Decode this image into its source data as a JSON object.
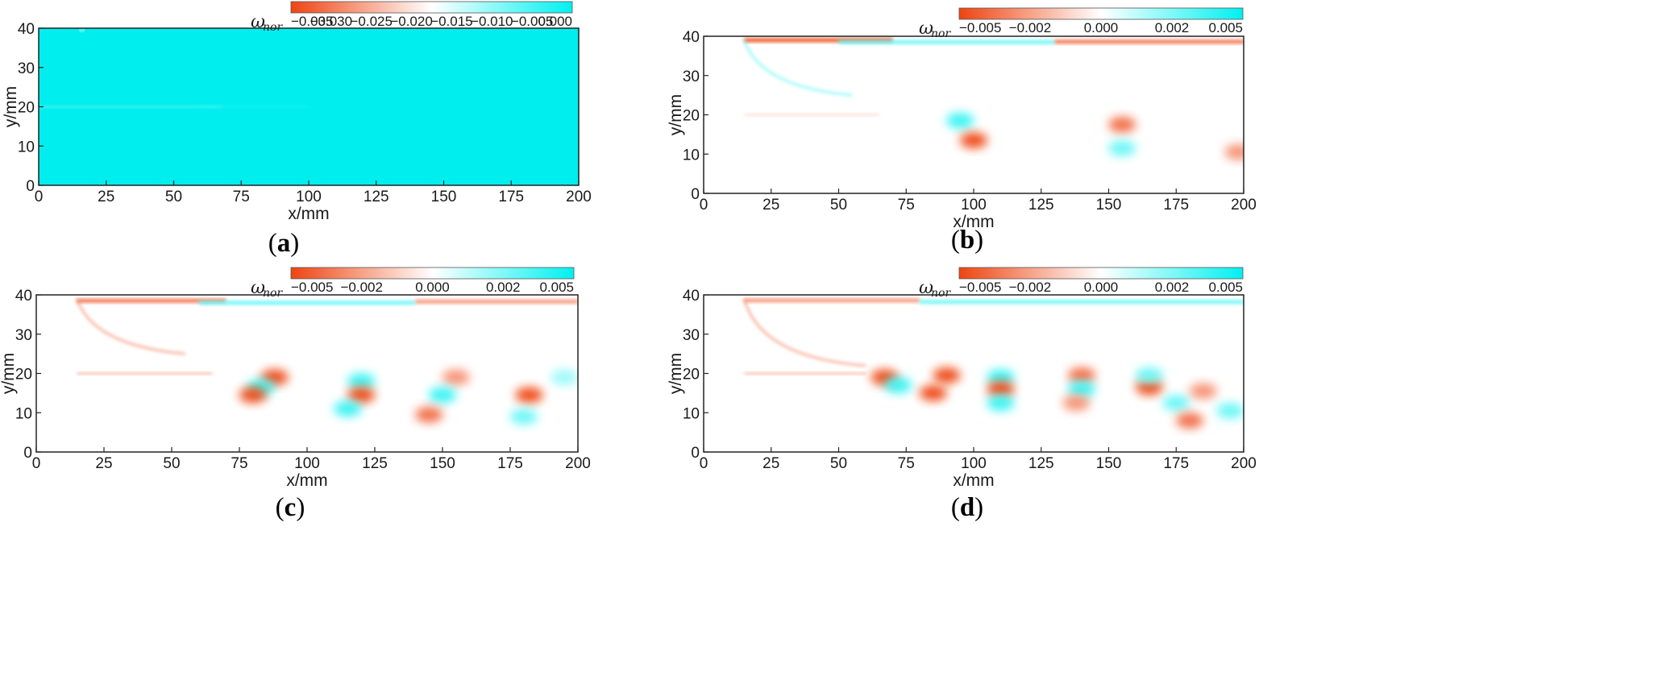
{
  "colors": {
    "negative": "#ee4411",
    "neutral": "#ffffff",
    "positive": "#00f0f0",
    "background_a": "#00eeee"
  },
  "chart_data": [
    {
      "type": "heatmap",
      "panel_label": "a",
      "xlabel": "x/mm",
      "ylabel": "y/mm",
      "xlim": [
        0,
        200
      ],
      "ylim": [
        0,
        40
      ],
      "x_ticks": [
        "0",
        "25",
        "50",
        "75",
        "100",
        "125",
        "150",
        "175",
        "200"
      ],
      "y_ticks": [
        "0",
        "10",
        "20",
        "30",
        "40"
      ],
      "colorbar": {
        "symbol": "ω",
        "subscript": "nor",
        "range": [
          -0.035,
          0.0
        ],
        "ticks": [
          "−0.035",
          "−0.030",
          "−0.025",
          "−0.020",
          "−0.015",
          "−0.010",
          "−0.005",
          "0.000"
        ]
      },
      "features": [
        {
          "kind": "jet-line",
          "x": [
            0,
            68
          ],
          "y": 20,
          "value": -0.005
        },
        {
          "kind": "jet-fade",
          "x": [
            60,
            100
          ],
          "y": 20,
          "value": -0.002
        },
        {
          "kind": "lip-spot",
          "x": 16,
          "y": 39.5,
          "value": -0.006
        }
      ]
    },
    {
      "type": "heatmap",
      "panel_label": "b",
      "xlabel": "x/mm",
      "ylabel": "y/mm",
      "xlim": [
        0,
        200
      ],
      "ylim": [
        0,
        40
      ],
      "x_ticks": [
        "0",
        "25",
        "50",
        "75",
        "100",
        "125",
        "150",
        "175",
        "200"
      ],
      "y_ticks": [
        "0",
        "10",
        "20",
        "30",
        "40"
      ],
      "colorbar": {
        "symbol": "ω",
        "subscript": "nor",
        "range": [
          -0.005,
          0.005
        ],
        "ticks": [
          "−0.005",
          "−0.002",
          "0.000",
          "0.002",
          "0.005"
        ]
      },
      "features": [
        {
          "kind": "wall-band",
          "x": [
            15,
            70
          ],
          "y": 39.0,
          "value": -0.005
        },
        {
          "kind": "wall-band",
          "x": [
            50,
            130
          ],
          "y": 38.5,
          "value": 0.003
        },
        {
          "kind": "wall-band",
          "x": [
            130,
            200
          ],
          "y": 38.6,
          "value": -0.004
        },
        {
          "kind": "shock-fan",
          "x": [
            15,
            55
          ],
          "y": [
            39,
            25
          ],
          "value": 0.003
        },
        {
          "kind": "shear-line",
          "x": [
            15,
            65
          ],
          "y": 20,
          "value": -0.001
        },
        {
          "kind": "blob",
          "x": 95,
          "y": 18.5,
          "value": 0.004
        },
        {
          "kind": "blob",
          "x": 100,
          "y": 13.5,
          "value": -0.005
        },
        {
          "kind": "blob",
          "x": 155,
          "y": 17.5,
          "value": -0.004
        },
        {
          "kind": "blob",
          "x": 155,
          "y": 11.5,
          "value": 0.003
        },
        {
          "kind": "blob",
          "x": 198,
          "y": 10.5,
          "value": -0.003
        }
      ]
    },
    {
      "type": "heatmap",
      "panel_label": "c",
      "xlabel": "x/mm",
      "ylabel": "y/mm",
      "xlim": [
        0,
        200
      ],
      "ylim": [
        0,
        40
      ],
      "x_ticks": [
        "0",
        "25",
        "50",
        "75",
        "100",
        "125",
        "150",
        "175",
        "200"
      ],
      "y_ticks": [
        "0",
        "10",
        "20",
        "30",
        "40"
      ],
      "colorbar": {
        "symbol": "ω",
        "subscript": "nor",
        "range": [
          -0.005,
          0.005
        ],
        "ticks": [
          "−0.005",
          "−0.002",
          "0.000",
          "0.002",
          "0.005"
        ]
      },
      "features": [
        {
          "kind": "wall-band",
          "x": [
            15,
            70
          ],
          "y": 38.5,
          "value": -0.004
        },
        {
          "kind": "wall-band",
          "x": [
            60,
            140
          ],
          "y": 38.0,
          "value": 0.003
        },
        {
          "kind": "wall-band",
          "x": [
            140,
            200
          ],
          "y": 38.3,
          "value": -0.003
        },
        {
          "kind": "shock-fan",
          "x": [
            15,
            55
          ],
          "y": [
            39,
            25
          ],
          "value": -0.003
        },
        {
          "kind": "shear-line",
          "x": [
            15,
            65
          ],
          "y": 20,
          "value": -0.002
        },
        {
          "kind": "blob",
          "x": 88,
          "y": 19.0,
          "value": -0.005
        },
        {
          "kind": "blob",
          "x": 83,
          "y": 16.5,
          "value": 0.004
        },
        {
          "kind": "blob",
          "x": 80,
          "y": 14.5,
          "value": -0.005
        },
        {
          "kind": "blob",
          "x": 120,
          "y": 18.0,
          "value": 0.004
        },
        {
          "kind": "blob",
          "x": 120,
          "y": 14.5,
          "value": -0.005
        },
        {
          "kind": "blob",
          "x": 115,
          "y": 11.0,
          "value": 0.004
        },
        {
          "kind": "blob",
          "x": 155,
          "y": 19.0,
          "value": -0.003
        },
        {
          "kind": "blob",
          "x": 150,
          "y": 14.5,
          "value": 0.004
        },
        {
          "kind": "blob",
          "x": 145,
          "y": 9.5,
          "value": -0.004
        },
        {
          "kind": "blob",
          "x": 182,
          "y": 14.5,
          "value": -0.005
        },
        {
          "kind": "blob",
          "x": 180,
          "y": 9.0,
          "value": 0.003
        },
        {
          "kind": "blob",
          "x": 195,
          "y": 19.0,
          "value": 0.002
        }
      ]
    },
    {
      "type": "heatmap",
      "panel_label": "d",
      "xlabel": "x/mm",
      "ylabel": "y/mm",
      "xlim": [
        0,
        200
      ],
      "ylim": [
        0,
        40
      ],
      "x_ticks": [
        "0",
        "25",
        "50",
        "75",
        "100",
        "125",
        "150",
        "175",
        "200"
      ],
      "y_ticks": [
        "0",
        "10",
        "20",
        "30",
        "40"
      ],
      "colorbar": {
        "symbol": "ω",
        "subscript": "nor",
        "range": [
          -0.005,
          0.005
        ],
        "ticks": [
          "−0.005",
          "−0.002",
          "0.000",
          "0.002",
          "0.005"
        ]
      },
      "features": [
        {
          "kind": "wall-band",
          "x": [
            15,
            80
          ],
          "y": 38.6,
          "value": -0.003
        },
        {
          "kind": "wall-band",
          "x": [
            80,
            200
          ],
          "y": 38.2,
          "value": 0.003
        },
        {
          "kind": "shock-fan",
          "x": [
            15,
            60
          ],
          "y": [
            39,
            22
          ],
          "value": -0.003
        },
        {
          "kind": "shear-line",
          "x": [
            15,
            60
          ],
          "y": 20,
          "value": -0.002
        },
        {
          "kind": "blob",
          "x": 67,
          "y": 19.0,
          "value": -0.005
        },
        {
          "kind": "blob",
          "x": 72,
          "y": 17.0,
          "value": 0.004
        },
        {
          "kind": "blob",
          "x": 90,
          "y": 19.5,
          "value": -0.005
        },
        {
          "kind": "blob",
          "x": 85,
          "y": 15.0,
          "value": -0.005
        },
        {
          "kind": "blob",
          "x": 110,
          "y": 19.0,
          "value": 0.004
        },
        {
          "kind": "blob",
          "x": 110,
          "y": 16.0,
          "value": -0.005
        },
        {
          "kind": "blob",
          "x": 110,
          "y": 12.5,
          "value": 0.004
        },
        {
          "kind": "blob",
          "x": 140,
          "y": 19.5,
          "value": -0.004
        },
        {
          "kind": "blob",
          "x": 140,
          "y": 16.0,
          "value": 0.004
        },
        {
          "kind": "blob",
          "x": 138,
          "y": 12.5,
          "value": -0.003
        },
        {
          "kind": "blob",
          "x": 165,
          "y": 16.5,
          "value": -0.005
        },
        {
          "kind": "blob",
          "x": 165,
          "y": 19.5,
          "value": 0.003
        },
        {
          "kind": "blob",
          "x": 175,
          "y": 12.5,
          "value": 0.003
        },
        {
          "kind": "blob",
          "x": 185,
          "y": 15.5,
          "value": -0.003
        },
        {
          "kind": "blob",
          "x": 180,
          "y": 8.0,
          "value": -0.004
        },
        {
          "kind": "blob",
          "x": 195,
          "y": 10.5,
          "value": 0.003
        }
      ]
    }
  ]
}
